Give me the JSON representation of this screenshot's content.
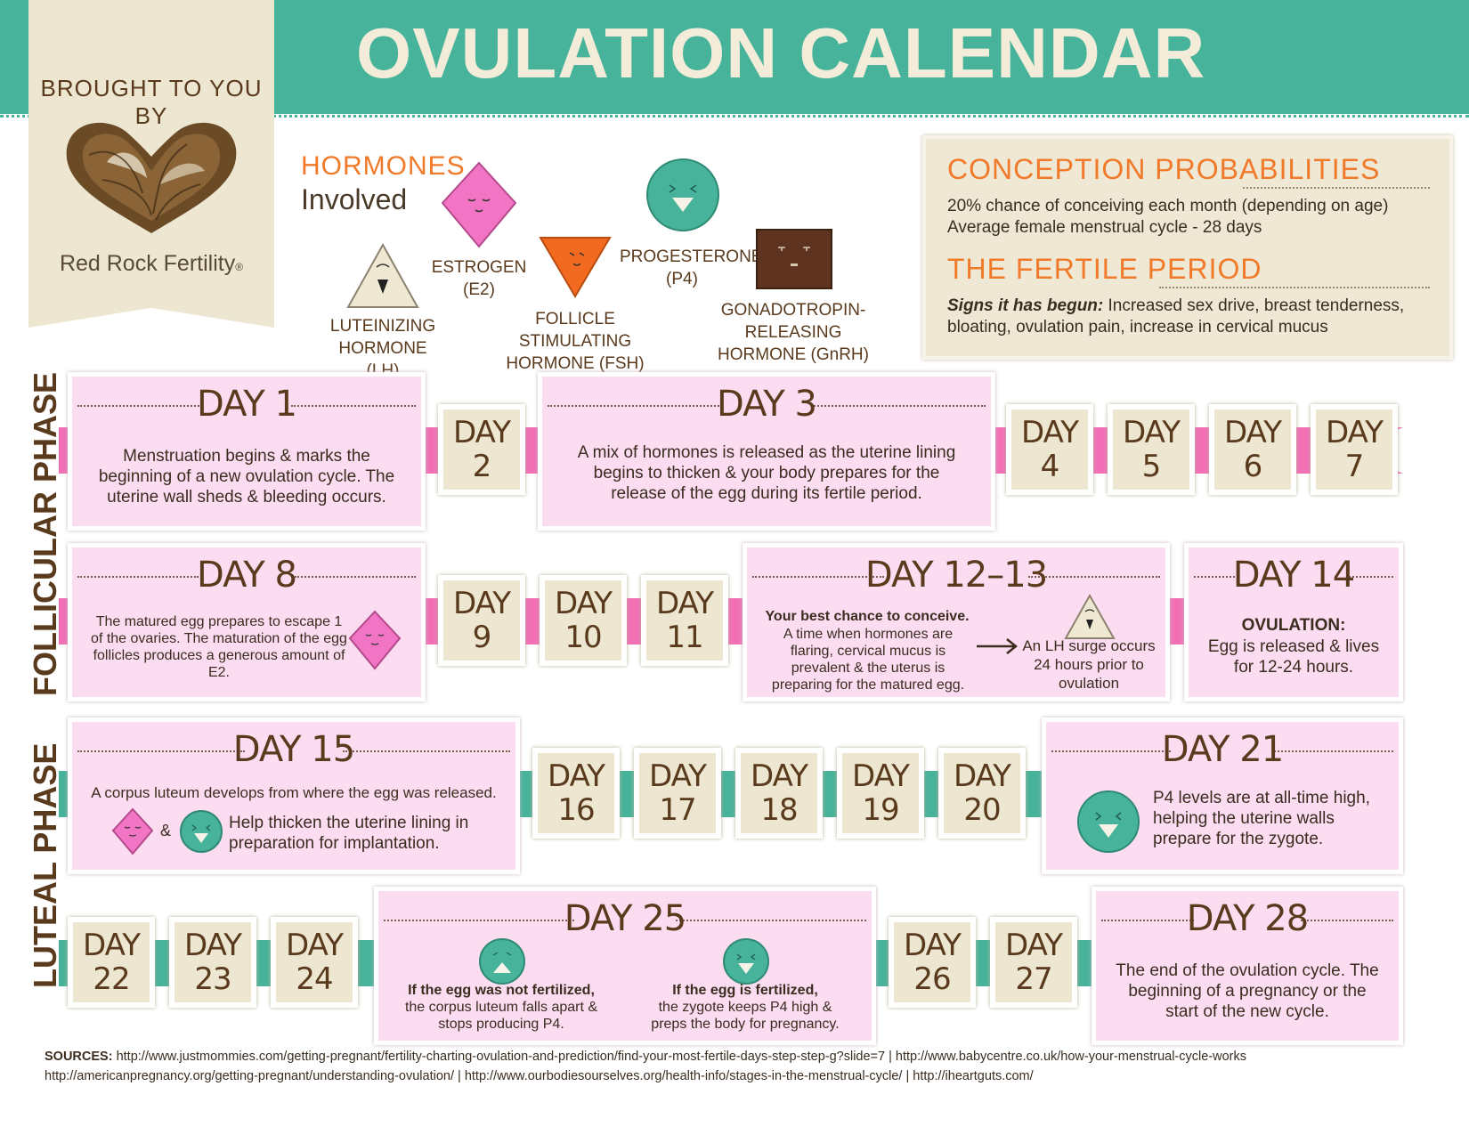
{
  "header": {
    "title": "OVULATION CALENDAR"
  },
  "brand": {
    "brought_by": "BROUGHT TO YOU BY",
    "name": "Red Rock Fertility",
    "registered": "®"
  },
  "hormones": {
    "title": "HORMONES",
    "subtitle": "Involved",
    "items": [
      {
        "name": "LUTEINIZING HORMONE",
        "abbr": "(LH)"
      },
      {
        "name": "ESTROGEN",
        "abbr": "(E2)"
      },
      {
        "name": "FOLLICLE STIMULATING",
        "abbr": "HORMONE (FSH)"
      },
      {
        "name": "PROGESTERONE",
        "abbr": "(P4)"
      },
      {
        "name": "GONADOTROPIN-RELEASING",
        "abbr": "HORMONE (GnRH)"
      }
    ]
  },
  "conception": {
    "heading": "CONCEPTION PROBABILITIES",
    "line1": "20% chance of conceiving each month (depending on age)",
    "line2": "Average female menstrual cycle - 28 days",
    "fertile_heading": "THE FERTILE PERIOD",
    "signs_label": "Signs it has begun:",
    "signs_text": " Increased sex drive, breast tenderness, bloating, ovulation pain, increase in cervical mucus"
  },
  "phases": {
    "follicular": "FOLLICULAR PHASE",
    "luteal": "LUTEAL PHASE"
  },
  "days": {
    "day1": {
      "title": "DAY 1",
      "text": "Menstruation begins & marks the beginning of a new ovulation cycle. The uterine wall sheds & bleeding occurs."
    },
    "day2": "DAY 2",
    "day3": {
      "title": "DAY 3",
      "text": "A mix of hormones is released as the uterine lining begins to thicken & your body prepares for the release of the egg during its fertile period."
    },
    "day4": "DAY 4",
    "day5": "DAY 5",
    "day6": "DAY 6",
    "day7": "DAY 7",
    "day8": {
      "title": "DAY 8",
      "text": "The matured egg prepares to escape 1 of the ovaries. The maturation of the egg follicles produces a generous amount of E2."
    },
    "day9": "DAY 9",
    "day10": "DAY 10",
    "day11": "DAY 11",
    "day12": {
      "title": "DAY 12–13",
      "bold": "Your best chance to conceive.",
      "text": "A time when hormones are flaring, cervical mucus is prevalent & the uterus is preparing for the matured egg.",
      "lh": "An LH surge occurs 24 hours prior to ovulation"
    },
    "day14": {
      "title": "DAY 14",
      "bold": "OVULATION:",
      "text": "Egg is released & lives for 12-24 hours."
    },
    "day15": {
      "title": "DAY 15",
      "text": "A corpus luteum develops from where the egg was released.",
      "amp": "&",
      "text2": "Help thicken the uterine lining in preparation for implantation."
    },
    "day16": "DAY 16",
    "day17": "DAY 17",
    "day18": "DAY 18",
    "day19": "DAY 19",
    "day20": "DAY 20",
    "day21": {
      "title": "DAY 21",
      "text": "P4 levels are at all-time high, helping the uterine walls prepare for the zygote."
    },
    "day22": "DAY 22",
    "day23": "DAY 23",
    "day24": "DAY 24",
    "day25": {
      "title": "DAY 25",
      "left_bold": "If the egg was not fertilized,",
      "left_text": "the corpus luteum falls apart & stops producing P4.",
      "right_bold": "If the egg is fertilized,",
      "right_text": "the zygote keeps P4 high & preps the body for pregnancy."
    },
    "day26": "DAY 26",
    "day27": "DAY 27",
    "day28": {
      "title": "DAY 28",
      "text": "The end of the ovulation cycle. The beginning of a pregnancy or the start of the new cycle."
    }
  },
  "sources": {
    "label": "SOURCES:",
    "line1": " http://www.justmommies.com/getting-pregnant/fertility-charting-ovulation-and-prediction/find-your-most-fertile-days-step-step-g?slide=7 | http://www.babycentre.co.uk/how-your-menstrual-cycle-works",
    "line2": "http://americanpregnancy.org/getting-pregnant/understanding-ovulation/ | http://www.ourbodiesourselves.org/health-info/stages-in-the-menstrual-cycle/ | http://iheartguts.com/"
  },
  "colors": {
    "teal": "#47b39a",
    "pink": "#f26fb6",
    "orange": "#f07a2a",
    "cream": "#ede6d1",
    "card_pink": "#fbdcf0",
    "brown": "#5a3a1d"
  }
}
